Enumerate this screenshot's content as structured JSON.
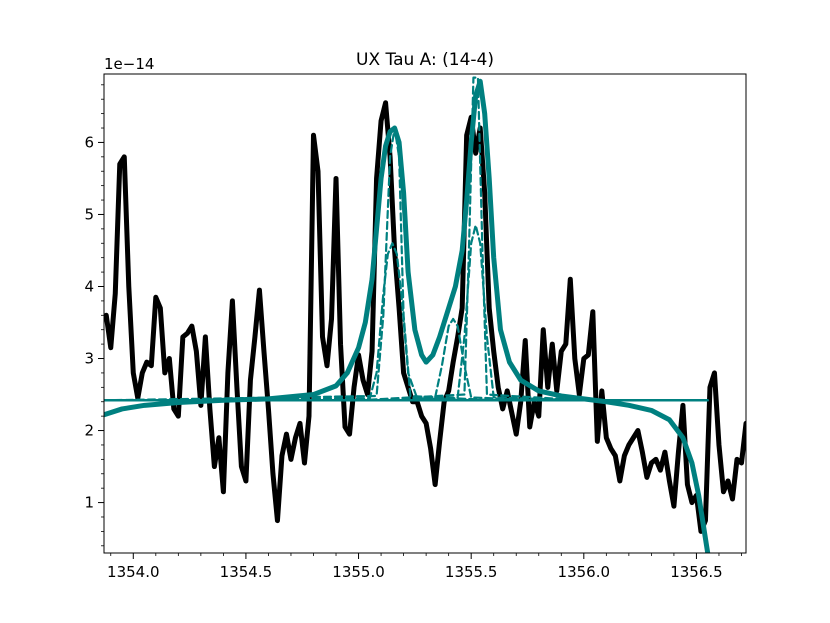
{
  "chart_data": {
    "type": "line",
    "title": "UX Tau A: (14-4)",
    "xlabel": "",
    "ylabel": "",
    "y_offset_label": "1e−14",
    "xlim": [
      1353.87,
      1356.72
    ],
    "ylim": [
      0.3,
      6.95
    ],
    "x_ticks": [
      1354.0,
      1354.5,
      1355.0,
      1355.5,
      1356.0,
      1356.5
    ],
    "x_tick_labels": [
      "1354.0",
      "1354.5",
      "1355.0",
      "1355.5",
      "1356.0",
      "1356.5"
    ],
    "y_ticks": [
      1,
      2,
      3,
      4,
      5,
      6
    ],
    "y_tick_labels": [
      "1",
      "2",
      "3",
      "4",
      "5",
      "6"
    ],
    "grid": false,
    "colors": {
      "observed": "#000000",
      "model": "#008080",
      "axes": "#000000"
    },
    "series": [
      {
        "style": "solid-thick-black",
        "x": [
          1353.87,
          1353.88,
          1353.9,
          1353.92,
          1353.94,
          1353.96,
          1353.98,
          1354.0,
          1354.02,
          1354.04,
          1354.06,
          1354.08,
          1354.1,
          1354.12,
          1354.14,
          1354.16,
          1354.18,
          1354.2,
          1354.22,
          1354.24,
          1354.26,
          1354.28,
          1354.3,
          1354.32,
          1354.34,
          1354.36,
          1354.38,
          1354.4,
          1354.42,
          1354.44,
          1354.46,
          1354.48,
          1354.5,
          1354.52,
          1354.54,
          1354.56,
          1354.58,
          1354.6,
          1354.62,
          1354.64,
          1354.66,
          1354.68,
          1354.7,
          1354.72,
          1354.74,
          1354.76,
          1354.78,
          1354.8,
          1354.82,
          1354.84,
          1354.86,
          1354.88,
          1354.9,
          1354.92,
          1354.94,
          1354.96,
          1354.98,
          1355.0,
          1355.02,
          1355.04,
          1355.06,
          1355.08,
          1355.1,
          1355.12,
          1355.14,
          1355.16,
          1355.18,
          1355.2,
          1355.22,
          1355.24,
          1355.26,
          1355.28,
          1355.3,
          1355.32,
          1355.34,
          1355.36,
          1355.38,
          1355.4,
          1355.42,
          1355.44,
          1355.46,
          1355.48,
          1355.5,
          1355.52,
          1355.54,
          1355.56,
          1355.58,
          1355.6,
          1355.62,
          1355.64,
          1355.66,
          1355.68,
          1355.7,
          1355.72,
          1355.74,
          1355.76,
          1355.78,
          1355.8,
          1355.82,
          1355.84,
          1355.86,
          1355.88,
          1355.9,
          1355.92,
          1355.94,
          1355.96,
          1355.98,
          1356.0,
          1356.02,
          1356.04,
          1356.06,
          1356.08,
          1356.1,
          1356.12,
          1356.14,
          1356.16,
          1356.18,
          1356.2,
          1356.22,
          1356.24,
          1356.26,
          1356.28,
          1356.3,
          1356.32,
          1356.34,
          1356.36,
          1356.38,
          1356.4,
          1356.42,
          1356.44,
          1356.46,
          1356.48,
          1356.5,
          1356.52,
          1356.54,
          1356.56,
          1356.58,
          1356.6,
          1356.62,
          1356.64,
          1356.66,
          1356.68,
          1356.7,
          1356.72
        ],
        "y": [
          3.55,
          3.6,
          3.15,
          3.9,
          5.7,
          5.8,
          4.0,
          2.8,
          2.45,
          2.8,
          2.95,
          2.9,
          3.85,
          3.7,
          2.8,
          3.0,
          2.3,
          2.2,
          3.3,
          3.35,
          3.45,
          3.1,
          2.35,
          3.3,
          2.3,
          1.5,
          1.9,
          1.15,
          2.8,
          3.8,
          2.6,
          1.5,
          1.3,
          2.7,
          3.3,
          3.95,
          3.1,
          2.3,
          1.4,
          0.75,
          1.65,
          1.95,
          1.6,
          1.9,
          2.1,
          1.55,
          2.2,
          6.1,
          5.6,
          3.3,
          2.9,
          3.55,
          5.5,
          3.2,
          2.05,
          1.95,
          2.6,
          3.05,
          2.7,
          2.5,
          3.1,
          5.5,
          6.3,
          6.55,
          5.8,
          4.5,
          3.7,
          2.8,
          2.6,
          2.4,
          2.4,
          2.2,
          2.1,
          1.75,
          1.25,
          1.85,
          2.4,
          2.55,
          2.95,
          3.3,
          3.7,
          6.1,
          6.35,
          5.85,
          6.2,
          5.3,
          3.7,
          3.1,
          2.6,
          2.3,
          2.55,
          2.25,
          1.95,
          2.4,
          3.25,
          2.05,
          2.4,
          2.2,
          3.4,
          2.6,
          3.2,
          2.55,
          3.1,
          3.2,
          4.1,
          3.0,
          2.5,
          3.0,
          3.05,
          3.65,
          1.85,
          2.55,
          1.9,
          1.75,
          1.65,
          1.3,
          1.65,
          1.8,
          1.9,
          2.0,
          1.7,
          1.35,
          1.55,
          1.6,
          1.45,
          1.7,
          1.3,
          0.95,
          1.7,
          2.35,
          1.25,
          1.0,
          1.1,
          0.6,
          0.75,
          2.6,
          2.8,
          1.8,
          1.15,
          1.3,
          1.05,
          1.6,
          1.55,
          2.1
        ]
      },
      {
        "style": "solid-thick-teal",
        "x": [
          1353.87,
          1353.95,
          1354.05,
          1354.2,
          1354.4,
          1354.6,
          1354.8,
          1354.9,
          1354.95,
          1355.0,
          1355.03,
          1355.06,
          1355.08,
          1355.1,
          1355.12,
          1355.14,
          1355.16,
          1355.18,
          1355.2,
          1355.22,
          1355.25,
          1355.28,
          1355.3,
          1355.33,
          1355.36,
          1355.4,
          1355.43,
          1355.46,
          1355.48,
          1355.5,
          1355.52,
          1355.54,
          1355.56,
          1355.58,
          1355.6,
          1355.63,
          1355.67,
          1355.72,
          1355.8,
          1355.9,
          1356.0,
          1356.1,
          1356.2,
          1356.3,
          1356.38,
          1356.44,
          1356.48,
          1356.51,
          1356.53,
          1356.55
        ],
        "y": [
          2.22,
          2.3,
          2.35,
          2.39,
          2.42,
          2.44,
          2.5,
          2.62,
          2.8,
          3.15,
          3.5,
          4.1,
          4.8,
          5.5,
          5.95,
          6.15,
          6.2,
          6.0,
          5.3,
          4.2,
          3.4,
          3.05,
          2.95,
          3.05,
          3.3,
          3.7,
          4.0,
          4.5,
          5.2,
          6.0,
          6.65,
          6.85,
          6.4,
          5.5,
          4.4,
          3.4,
          2.95,
          2.7,
          2.55,
          2.48,
          2.44,
          2.4,
          2.35,
          2.28,
          2.15,
          1.9,
          1.55,
          1.1,
          0.7,
          0.3
        ]
      },
      {
        "style": "solid-thin-teal-baseline",
        "x": [
          1353.87,
          1356.55
        ],
        "y": [
          2.42,
          2.42
        ]
      },
      {
        "style": "dashed-teal",
        "x": [
          1353.87,
          1355.05,
          1355.08,
          1355.11,
          1355.13,
          1355.15,
          1355.17,
          1355.19,
          1355.22,
          1355.26,
          1355.5
        ],
        "y": [
          2.42,
          2.45,
          2.8,
          3.9,
          4.45,
          4.6,
          4.45,
          3.9,
          2.8,
          2.45,
          2.42
        ]
      },
      {
        "style": "dashed-teal",
        "x": [
          1353.87,
          1355.08,
          1355.11,
          1355.14,
          1355.16,
          1355.18,
          1355.2,
          1355.23,
          1355.6
        ],
        "y": [
          2.42,
          2.48,
          3.6,
          5.8,
          6.2,
          5.8,
          3.6,
          2.48,
          2.42
        ]
      },
      {
        "style": "dashed-teal",
        "x": [
          1355.0,
          1355.34,
          1355.37,
          1355.4,
          1355.42,
          1355.44,
          1355.47,
          1355.5,
          1355.8
        ],
        "y": [
          2.42,
          2.46,
          2.9,
          3.45,
          3.55,
          3.45,
          2.9,
          2.46,
          2.42
        ]
      },
      {
        "style": "dashed-teal",
        "x": [
          1355.0,
          1355.44,
          1355.47,
          1355.5,
          1355.52,
          1355.54,
          1355.57,
          1355.6,
          1356.0
        ],
        "y": [
          2.42,
          2.46,
          3.3,
          4.6,
          4.85,
          4.6,
          3.3,
          2.46,
          2.42
        ]
      },
      {
        "style": "dashed-teal",
        "x": [
          1355.0,
          1355.47,
          1355.49,
          1355.51,
          1355.53,
          1355.55,
          1355.57,
          1356.0
        ],
        "y": [
          2.42,
          2.5,
          4.5,
          6.9,
          6.9,
          4.5,
          2.5,
          2.42
        ]
      }
    ]
  }
}
